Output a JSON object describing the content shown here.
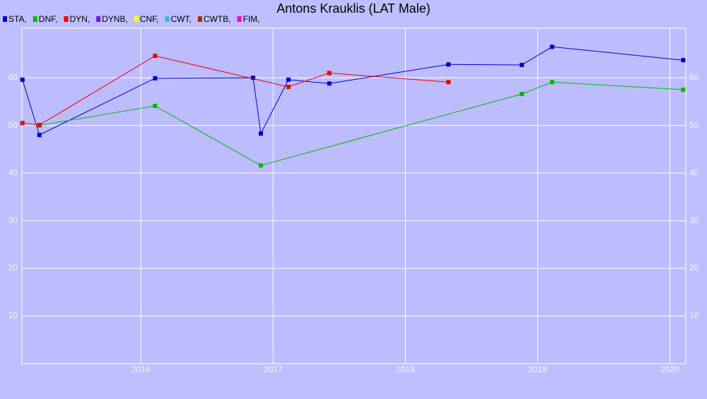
{
  "chart_data": {
    "type": "line",
    "title": "Antons Krauklis (LAT Male)",
    "series": [
      {
        "name": "STA,",
        "color": "#0000cc",
        "x": [
          2015.104,
          2015.232,
          2016.107,
          2016.848,
          2016.907,
          2017.115,
          2017.424,
          2018.325,
          2018.88,
          2019.109,
          2020.101
        ],
        "values": [
          59.6,
          48.0,
          59.9,
          60.0,
          48.3,
          59.6,
          58.8,
          62.8,
          62.7,
          66.5,
          63.7
        ]
      },
      {
        "name": "DNF,",
        "color": "#00bb00",
        "x": [
          2015.232,
          2016.107,
          2016.907,
          2018.88,
          2019.109,
          2020.101
        ],
        "values": [
          50.0,
          54.1,
          41.6,
          56.6,
          59.1,
          57.5
        ]
      },
      {
        "name": "DYN,",
        "color": "#ee0000",
        "x": [
          2015.104,
          2015.232,
          2016.107,
          2017.115,
          2017.424,
          2018.325
        ],
        "values": [
          50.5,
          50.1,
          64.6,
          58.1,
          61.0,
          59.1
        ]
      },
      {
        "name": "DYNB,",
        "color": "#6a1fd6",
        "x": [],
        "values": []
      },
      {
        "name": "CNF,",
        "color": "#ffff00",
        "x": [],
        "values": []
      },
      {
        "name": "CWT,",
        "color": "#33bbdd",
        "x": [],
        "values": []
      },
      {
        "name": "CWTB,",
        "color": "#993300",
        "x": [],
        "values": []
      },
      {
        "name": "FIM,",
        "color": "#ff00cc",
        "x": [],
        "values": []
      }
    ],
    "xlim": [
      2015.1,
      2020.12
    ],
    "xticks": [
      2016,
      2017,
      2018,
      2019,
      2020
    ],
    "ylim": [
      0,
      70.4
    ],
    "yticks": [
      10,
      20,
      30,
      40,
      50,
      60
    ],
    "grid": true
  }
}
